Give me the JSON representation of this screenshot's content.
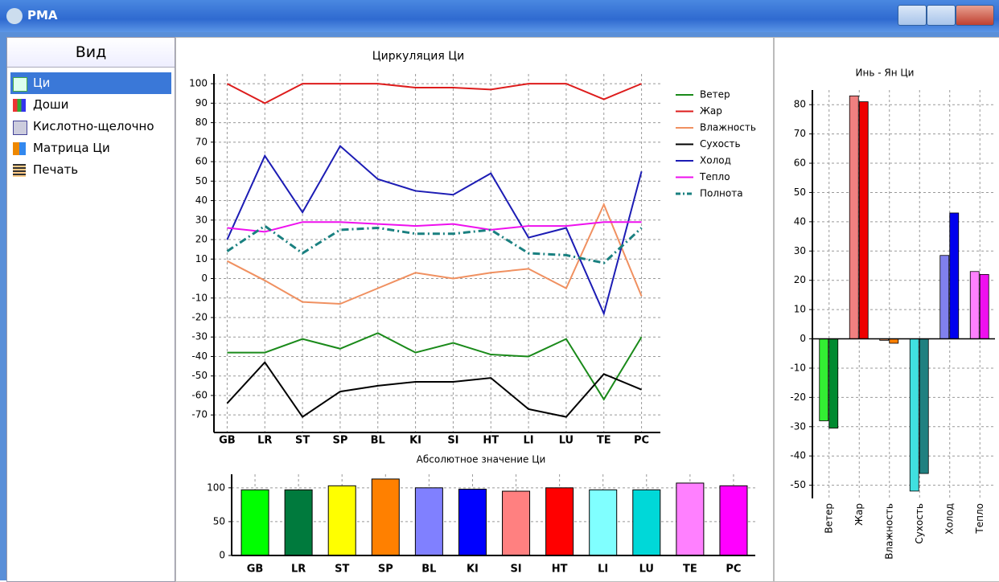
{
  "window": {
    "title": "PMA"
  },
  "sidebar": {
    "header": "Вид",
    "items": [
      "Ци",
      "Доши",
      "Кислотно-щелочно",
      "Матрица Ци",
      "Печать"
    ]
  },
  "chart_data": [
    {
      "type": "line",
      "title": "Циркуляция Ци",
      "grid": true,
      "categories": [
        "GB",
        "LR",
        "ST",
        "SP",
        "BL",
        "KI",
        "SI",
        "HT",
        "LI",
        "LU",
        "TE",
        "PC"
      ],
      "ylim": [
        -79,
        105
      ],
      "yticks": [
        -70,
        -60,
        -50,
        -40,
        -30,
        -20,
        -10,
        0,
        10,
        20,
        30,
        40,
        50,
        60,
        70,
        80,
        90,
        100
      ],
      "legend": "right",
      "series": [
        {
          "name": "Ветер",
          "color": "#1a8a1a",
          "values": [
            -38,
            -38,
            -31,
            -36,
            -28,
            -38,
            -33,
            -39,
            -40,
            -31,
            -62,
            -30
          ]
        },
        {
          "name": "Жар",
          "color": "#dd1c1c",
          "values": [
            100,
            90,
            100,
            100,
            100,
            98,
            98,
            97,
            100,
            100,
            92,
            100
          ]
        },
        {
          "name": "Влажность",
          "color": "#f09060",
          "values": [
            9,
            -1,
            -12,
            -13,
            -5,
            3,
            0,
            3,
            5,
            -5,
            38,
            -9
          ]
        },
        {
          "name": "Сухость",
          "color": "#000000",
          "values": [
            -64,
            -43,
            -71,
            -58,
            -55,
            -53,
            -53,
            -51,
            -67,
            -71,
            -49,
            -57
          ]
        },
        {
          "name": "Холод",
          "color": "#1c1cb4",
          "values": [
            20,
            63,
            34,
            68,
            51,
            45,
            43,
            54,
            21,
            26,
            -18,
            55
          ]
        },
        {
          "name": "Тепло",
          "color": "#ee10ee",
          "values": [
            26,
            24,
            29,
            29,
            28,
            27,
            28,
            25,
            27,
            27,
            29,
            29
          ]
        },
        {
          "name": "Полнота",
          "color": "#1a8080",
          "style": "dashdot",
          "values": [
            14,
            27,
            13,
            25,
            26,
            23,
            23,
            25,
            13,
            12,
            8,
            26
          ]
        }
      ]
    },
    {
      "type": "bar",
      "title": "Абсолютное значение Ци",
      "grid": true,
      "categories": [
        "GB",
        "LR",
        "ST",
        "SP",
        "BL",
        "KI",
        "SI",
        "HT",
        "LI",
        "LU",
        "TE",
        "PC"
      ],
      "ylim": [
        0,
        120
      ],
      "yticks": [
        0,
        50,
        100
      ],
      "values": [
        97,
        97,
        103,
        113,
        100,
        98,
        95,
        100,
        97,
        97,
        107,
        103
      ],
      "colors": [
        "#00ff00",
        "#007a3d",
        "#ffff00",
        "#ff8000",
        "#8080ff",
        "#0000ff",
        "#ff8080",
        "#ff0000",
        "#80ffff",
        "#00d8d8",
        "#ff80ff",
        "#ff00ff"
      ]
    },
    {
      "type": "bar",
      "title": "Инь - Ян Ци",
      "grid": true,
      "categories": [
        "Ветер",
        "Жар",
        "Влажность",
        "Сухость",
        "Холод",
        "Тепло"
      ],
      "ylim": [
        -54.5,
        85
      ],
      "yticks": [
        -50,
        -40,
        -30,
        -20,
        -10,
        0,
        10,
        20,
        30,
        40,
        50,
        60,
        70,
        80
      ],
      "series": [
        {
          "colors": [
            "#33ee33",
            "#f08080",
            "#f0a070",
            "#40e0e0",
            "#8080ee",
            "#ff80ff"
          ],
          "values": [
            -28,
            83,
            -0.5,
            -52,
            28.5,
            23
          ]
        },
        {
          "colors": [
            "#008a30",
            "#ee0000",
            "#ff8000",
            "#208080",
            "#0000ee",
            "#ee10ee"
          ],
          "values": [
            -30.5,
            81,
            -1.5,
            -46,
            43,
            22
          ]
        }
      ]
    }
  ]
}
